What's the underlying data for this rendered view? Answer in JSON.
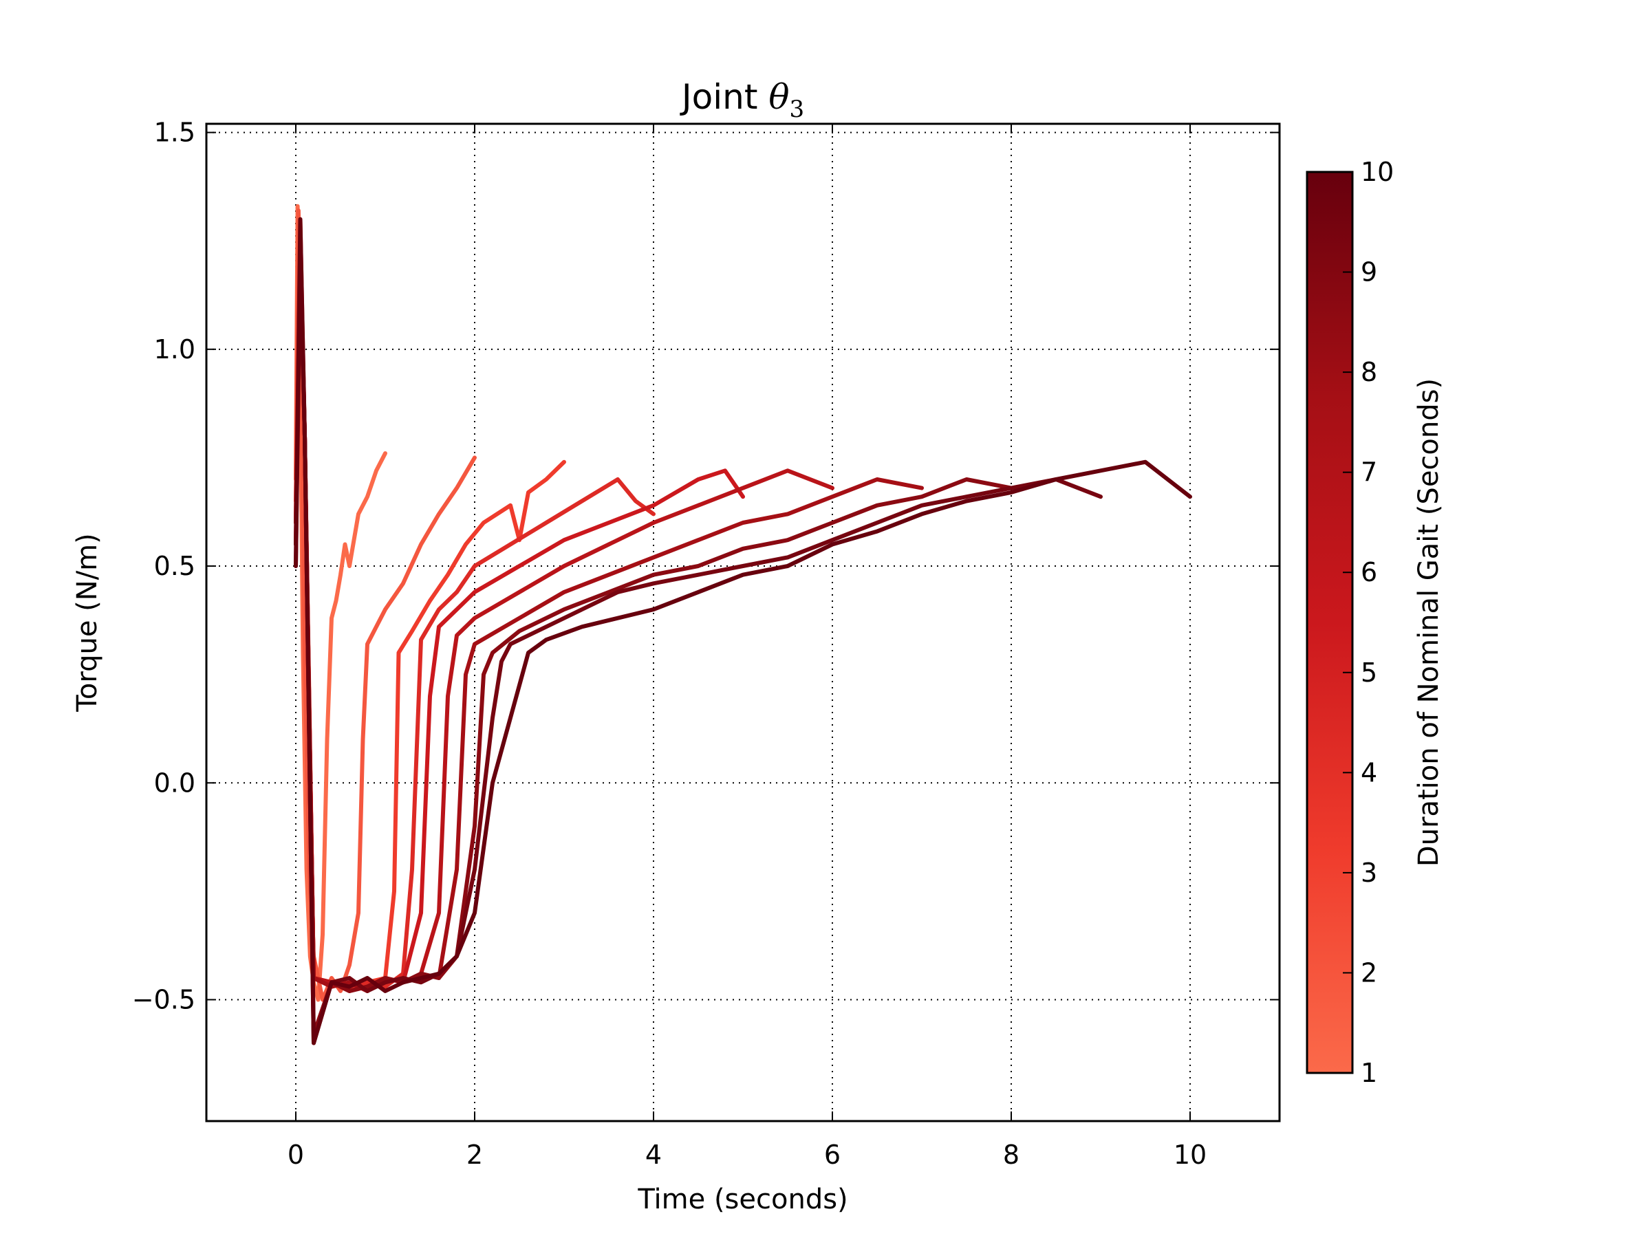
{
  "chart_data": {
    "type": "line",
    "title": "Joint",
    "title_symbol": "θ",
    "title_subscript": "3",
    "xlabel": "Time (seconds)",
    "ylabel": "Torque (N/m)",
    "xlim": [
      -1,
      11
    ],
    "ylim": [
      -0.78,
      1.52
    ],
    "xticks": [
      0,
      2,
      4,
      6,
      8,
      10
    ],
    "xtick_labels": [
      "0",
      "2",
      "4",
      "6",
      "8",
      "10"
    ],
    "yticks": [
      -0.5,
      0.0,
      0.5,
      1.0,
      1.5
    ],
    "ytick_labels": [
      "−0.5",
      "0.0",
      "0.5",
      "1.0",
      "1.5"
    ],
    "grid": true,
    "colorbar": {
      "label": "Duration of Nominal Gait (Seconds)",
      "range": [
        1,
        10
      ],
      "ticks": [
        1,
        2,
        3,
        4,
        5,
        6,
        7,
        8,
        9,
        10
      ],
      "tick_labels": [
        "1",
        "2",
        "3",
        "4",
        "5",
        "6",
        "7",
        "8",
        "9",
        "10"
      ],
      "colors": [
        "#fb6a4a",
        "#ef3b2c",
        "#cb181d",
        "#a50f15",
        "#67000d"
      ]
    },
    "series": [
      {
        "duration": 1,
        "color": "#fb6a4a",
        "x": [
          0.0,
          0.02,
          0.05,
          0.08,
          0.12,
          0.16,
          0.2,
          0.25,
          0.3,
          0.35,
          0.4,
          0.45,
          0.5,
          0.55,
          0.6,
          0.7,
          0.8,
          0.9,
          1.0
        ],
        "y": [
          0.7,
          1.33,
          0.9,
          0.3,
          -0.2,
          -0.4,
          -0.46,
          -0.5,
          -0.35,
          0.1,
          0.38,
          0.42,
          0.48,
          0.55,
          0.5,
          0.62,
          0.66,
          0.72,
          0.76
        ]
      },
      {
        "duration": 2,
        "color": "#f4573f",
        "x": [
          0.0,
          0.03,
          0.06,
          0.1,
          0.15,
          0.2,
          0.3,
          0.4,
          0.5,
          0.6,
          0.7,
          0.75,
          0.8,
          0.9,
          1.0,
          1.2,
          1.4,
          1.6,
          1.8,
          2.0
        ],
        "y": [
          0.6,
          1.32,
          0.9,
          0.3,
          -0.2,
          -0.4,
          -0.5,
          -0.45,
          -0.48,
          -0.42,
          -0.3,
          0.1,
          0.32,
          0.36,
          0.4,
          0.46,
          0.55,
          0.62,
          0.68,
          0.75
        ]
      },
      {
        "duration": 3,
        "color": "#ef3b2c",
        "x": [
          0.0,
          0.05,
          0.1,
          0.15,
          0.2,
          0.4,
          0.6,
          0.8,
          1.0,
          1.1,
          1.15,
          1.3,
          1.5,
          1.7,
          1.9,
          2.1,
          2.4,
          2.5,
          2.6,
          2.8,
          3.0
        ],
        "y": [
          0.65,
          1.3,
          0.8,
          0.2,
          -0.45,
          -0.46,
          -0.48,
          -0.46,
          -0.45,
          -0.25,
          0.3,
          0.35,
          0.42,
          0.48,
          0.55,
          0.6,
          0.64,
          0.56,
          0.67,
          0.7,
          0.74
        ]
      },
      {
        "duration": 4,
        "color": "#dd2a25",
        "x": [
          0.0,
          0.05,
          0.1,
          0.2,
          0.4,
          0.6,
          0.8,
          1.0,
          1.2,
          1.3,
          1.4,
          1.6,
          1.8,
          2.0,
          2.4,
          2.8,
          3.2,
          3.6,
          3.8,
          4.0
        ],
        "y": [
          0.55,
          1.25,
          0.8,
          -0.45,
          -0.46,
          -0.48,
          -0.46,
          -0.47,
          -0.44,
          -0.2,
          0.33,
          0.4,
          0.44,
          0.5,
          0.55,
          0.6,
          0.65,
          0.7,
          0.65,
          0.62
        ]
      },
      {
        "duration": 5,
        "color": "#cb181d",
        "x": [
          0.0,
          0.05,
          0.1,
          0.2,
          0.4,
          0.6,
          0.8,
          1.0,
          1.2,
          1.4,
          1.5,
          1.6,
          1.8,
          2.0,
          2.5,
          3.0,
          3.5,
          4.0,
          4.5,
          4.8,
          5.0
        ],
        "y": [
          0.6,
          1.25,
          0.8,
          -0.45,
          -0.47,
          -0.46,
          -0.48,
          -0.45,
          -0.46,
          -0.3,
          0.2,
          0.36,
          0.4,
          0.44,
          0.5,
          0.56,
          0.6,
          0.64,
          0.7,
          0.72,
          0.66
        ]
      },
      {
        "duration": 6,
        "color": "#b91419",
        "x": [
          0.0,
          0.05,
          0.1,
          0.2,
          0.4,
          0.6,
          0.8,
          1.0,
          1.2,
          1.4,
          1.6,
          1.7,
          1.8,
          2.0,
          2.5,
          3.0,
          3.5,
          4.0,
          4.5,
          5.0,
          5.5,
          6.0
        ],
        "y": [
          0.55,
          1.25,
          0.8,
          -0.45,
          -0.46,
          -0.48,
          -0.47,
          -0.45,
          -0.46,
          -0.44,
          -0.3,
          0.2,
          0.34,
          0.38,
          0.44,
          0.5,
          0.55,
          0.6,
          0.64,
          0.68,
          0.72,
          0.68
        ]
      },
      {
        "duration": 7,
        "color": "#a50f15",
        "x": [
          0.0,
          0.05,
          0.1,
          0.2,
          0.4,
          0.6,
          0.8,
          1.0,
          1.2,
          1.4,
          1.6,
          1.8,
          1.9,
          2.0,
          2.5,
          3.0,
          3.5,
          4.0,
          4.5,
          5.0,
          5.5,
          6.0,
          6.5,
          7.0
        ],
        "y": [
          0.6,
          1.22,
          0.8,
          -0.45,
          -0.47,
          -0.46,
          -0.48,
          -0.45,
          -0.46,
          -0.44,
          -0.45,
          -0.2,
          0.25,
          0.32,
          0.38,
          0.44,
          0.48,
          0.52,
          0.56,
          0.6,
          0.62,
          0.66,
          0.7,
          0.68
        ]
      },
      {
        "duration": 8,
        "color": "#8b0a12",
        "x": [
          0.0,
          0.05,
          0.1,
          0.2,
          0.4,
          0.6,
          0.8,
          1.0,
          1.2,
          1.4,
          1.6,
          1.8,
          2.0,
          2.1,
          2.2,
          2.5,
          3.0,
          3.5,
          4.0,
          4.5,
          5.0,
          5.5,
          6.0,
          6.5,
          7.0,
          7.5,
          8.0
        ],
        "y": [
          0.5,
          1.2,
          0.8,
          -0.58,
          -0.46,
          -0.48,
          -0.47,
          -0.45,
          -0.46,
          -0.44,
          -0.45,
          -0.4,
          -0.1,
          0.25,
          0.3,
          0.35,
          0.4,
          0.44,
          0.48,
          0.5,
          0.54,
          0.56,
          0.6,
          0.64,
          0.66,
          0.7,
          0.68
        ]
      },
      {
        "duration": 9,
        "color": "#770510",
        "x": [
          0.0,
          0.05,
          0.1,
          0.2,
          0.4,
          0.6,
          0.8,
          1.0,
          1.2,
          1.4,
          1.6,
          1.8,
          2.0,
          2.2,
          2.3,
          2.4,
          2.8,
          3.2,
          3.6,
          4.0,
          4.5,
          5.0,
          5.5,
          6.0,
          6.5,
          7.0,
          7.5,
          8.0,
          8.5,
          9.0
        ],
        "y": [
          0.55,
          1.22,
          0.8,
          -0.6,
          -0.46,
          -0.45,
          -0.48,
          -0.46,
          -0.45,
          -0.46,
          -0.44,
          -0.4,
          -0.2,
          0.15,
          0.28,
          0.32,
          0.36,
          0.4,
          0.44,
          0.46,
          0.48,
          0.5,
          0.52,
          0.56,
          0.6,
          0.64,
          0.66,
          0.68,
          0.7,
          0.66
        ]
      },
      {
        "duration": 10,
        "color": "#67000d",
        "x": [
          0.0,
          0.05,
          0.1,
          0.2,
          0.4,
          0.6,
          0.8,
          1.0,
          1.2,
          1.4,
          1.6,
          1.8,
          2.0,
          2.2,
          2.4,
          2.6,
          2.8,
          3.2,
          3.6,
          4.0,
          4.5,
          5.0,
          5.5,
          6.0,
          6.5,
          7.0,
          7.5,
          8.0,
          8.5,
          9.0,
          9.5,
          10.0
        ],
        "y": [
          0.5,
          1.3,
          0.8,
          -0.6,
          -0.46,
          -0.47,
          -0.45,
          -0.48,
          -0.46,
          -0.45,
          -0.44,
          -0.4,
          -0.3,
          0.0,
          0.15,
          0.3,
          0.33,
          0.36,
          0.38,
          0.4,
          0.44,
          0.48,
          0.5,
          0.55,
          0.58,
          0.62,
          0.65,
          0.67,
          0.7,
          0.72,
          0.74,
          0.66
        ]
      }
    ]
  }
}
